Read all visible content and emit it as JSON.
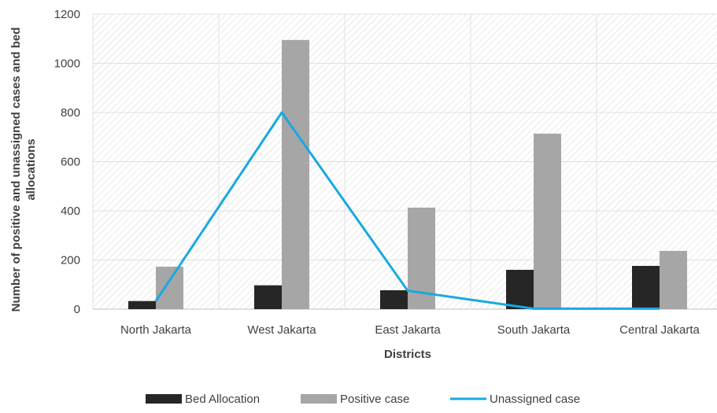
{
  "chart_data": {
    "type": "bar",
    "categories": [
      "North Jakarta",
      "West Jakarta",
      "East Jakarta",
      "South Jakarta",
      "Central Jakarta"
    ],
    "series": [
      {
        "name": "Bed Allocation",
        "type": "bar",
        "color": "#262626",
        "values": [
          33,
          97,
          77,
          160,
          176
        ]
      },
      {
        "name": "Positive case",
        "type": "bar",
        "color": "#a6a6a6",
        "values": [
          173,
          1095,
          413,
          714,
          237
        ]
      },
      {
        "name": "Unassigned case",
        "type": "line",
        "color": "#17a9e0",
        "values": [
          33,
          800,
          75,
          2,
          2
        ]
      }
    ],
    "xlabel": "Districts",
    "ylabel": "Number of positive and unassigned cases and bed allocations",
    "ylim": [
      0,
      1200
    ],
    "yticks": [
      0,
      200,
      400,
      600,
      800,
      1000,
      1200
    ],
    "grid": true,
    "legend_position": "bottom"
  }
}
